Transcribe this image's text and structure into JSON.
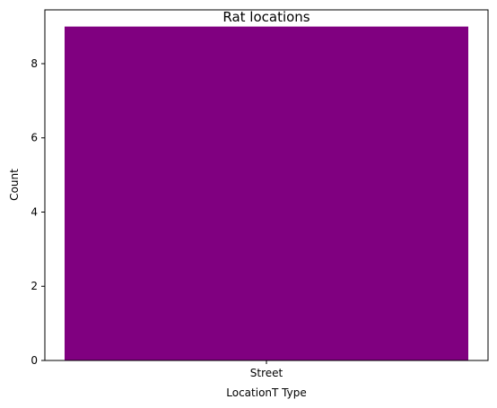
{
  "chart_data": {
    "type": "bar",
    "title": "Rat locations",
    "xlabel": "LocationT Type",
    "ylabel": "Count",
    "categories": [
      "Street"
    ],
    "values": [
      9
    ],
    "ylim": [
      0,
      9.45
    ],
    "yticks": [
      0,
      2,
      4,
      6,
      8
    ],
    "bar_color": "#800080",
    "grid": false,
    "legend": "none"
  }
}
